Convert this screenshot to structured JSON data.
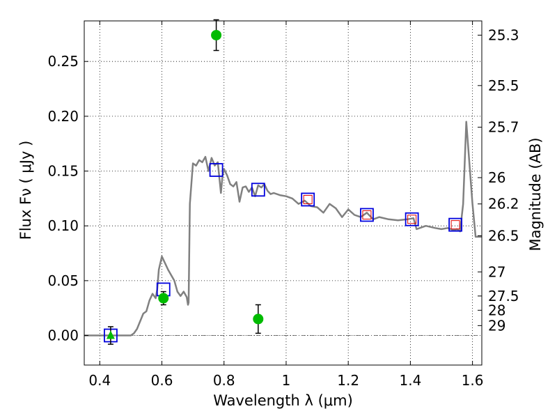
{
  "chart_data": {
    "type": "scatter",
    "xlabel": "Wavelength  λ (μm)",
    "ylabel": "Flux  Fν  ( μJy )",
    "y2label": "Magnitude (AB)",
    "xlim": [
      0.35,
      1.63
    ],
    "ylim": [
      -0.027,
      0.287
    ],
    "grid": true,
    "x_ticks": [
      0.4,
      0.6,
      0.8,
      1.0,
      1.2,
      1.4,
      1.6
    ],
    "x_tick_labels": [
      "0.4",
      "0.6",
      "0.8",
      "1",
      "1.2",
      "1.4",
      "1.6"
    ],
    "y_ticks": [
      0.0,
      0.05,
      0.1,
      0.15,
      0.2,
      0.25
    ],
    "y_tick_labels": [
      "0.00",
      "0.05",
      "0.10",
      "0.15",
      "0.20",
      "0.25"
    ],
    "mag_ticks": [
      {
        "label": "25.3",
        "flux": 0.274
      },
      {
        "label": "25.5",
        "flux": 0.228
      },
      {
        "label": "25.7",
        "flux": 0.19
      },
      {
        "label": "26",
        "flux": 0.144
      },
      {
        "label": "26.2",
        "flux": 0.12
      },
      {
        "label": "26.5",
        "flux": 0.091
      },
      {
        "label": "27",
        "flux": 0.058
      },
      {
        "label": "27.5",
        "flux": 0.036
      },
      {
        "label": "28",
        "flux": 0.023
      },
      {
        "label": "29",
        "flux": 0.009
      }
    ],
    "colors": {
      "model": "#808080",
      "observed": "#00bb00",
      "model_photometry": "#0000dd",
      "inner_marker": "#dd0000",
      "errorbar": "#000000"
    },
    "series": [
      {
        "kind": "line",
        "x": [
          0.35,
          0.5,
          0.51,
          0.52,
          0.54,
          0.55,
          0.56,
          0.57,
          0.58,
          0.585,
          0.59,
          0.6,
          0.61,
          0.62,
          0.63,
          0.64,
          0.65,
          0.66,
          0.67,
          0.68,
          0.684,
          0.686,
          0.69,
          0.7,
          0.71,
          0.72,
          0.73,
          0.74,
          0.75,
          0.76,
          0.77,
          0.78,
          0.79,
          0.795,
          0.8,
          0.81,
          0.82,
          0.83,
          0.84,
          0.85,
          0.86,
          0.87,
          0.88,
          0.89,
          0.9,
          0.91,
          0.92,
          0.93,
          0.94,
          0.95,
          0.96,
          0.98,
          1.0,
          1.02,
          1.04,
          1.06,
          1.08,
          1.1,
          1.12,
          1.14,
          1.16,
          1.18,
          1.2,
          1.22,
          1.24,
          1.26,
          1.28,
          1.3,
          1.33,
          1.36,
          1.39,
          1.41,
          1.42,
          1.45,
          1.48,
          1.5,
          1.52,
          1.54,
          1.55,
          1.56,
          1.57,
          1.58,
          1.6,
          1.61,
          1.63
        ],
        "y": [
          0.0,
          0.0,
          0.002,
          0.006,
          0.02,
          0.022,
          0.032,
          0.038,
          0.034,
          0.042,
          0.06,
          0.072,
          0.066,
          0.06,
          0.055,
          0.05,
          0.04,
          0.036,
          0.04,
          0.035,
          0.028,
          0.03,
          0.12,
          0.157,
          0.155,
          0.16,
          0.158,
          0.163,
          0.15,
          0.162,
          0.155,
          0.158,
          0.13,
          0.145,
          0.152,
          0.146,
          0.138,
          0.136,
          0.14,
          0.122,
          0.135,
          0.136,
          0.131,
          0.135,
          0.127,
          0.137,
          0.135,
          0.138,
          0.132,
          0.129,
          0.13,
          0.128,
          0.127,
          0.125,
          0.12,
          0.123,
          0.118,
          0.117,
          0.112,
          0.12,
          0.116,
          0.108,
          0.115,
          0.11,
          0.108,
          0.112,
          0.106,
          0.108,
          0.106,
          0.105,
          0.106,
          0.107,
          0.097,
          0.1,
          0.098,
          0.097,
          0.098,
          0.096,
          0.097,
          0.095,
          0.12,
          0.195,
          0.12,
          0.09,
          0.09
        ]
      },
      {
        "kind": "observed",
        "x": [
          0.435,
          0.605,
          0.775,
          0.91
        ],
        "y": [
          0.0,
          0.034,
          0.274,
          0.015
        ],
        "yerr": [
          0.008,
          0.006,
          0.014,
          0.013
        ],
        "marker": [
          "triangle",
          "circle",
          "circle",
          "circle"
        ]
      },
      {
        "kind": "model_photometry",
        "x": [
          0.435,
          0.605,
          0.775,
          0.91,
          1.07,
          1.26,
          1.405,
          1.545
        ],
        "y": [
          0.0,
          0.042,
          0.151,
          0.133,
          0.124,
          0.11,
          0.106,
          0.101
        ],
        "inner": [
          false,
          false,
          false,
          false,
          true,
          true,
          true,
          true
        ]
      }
    ]
  }
}
